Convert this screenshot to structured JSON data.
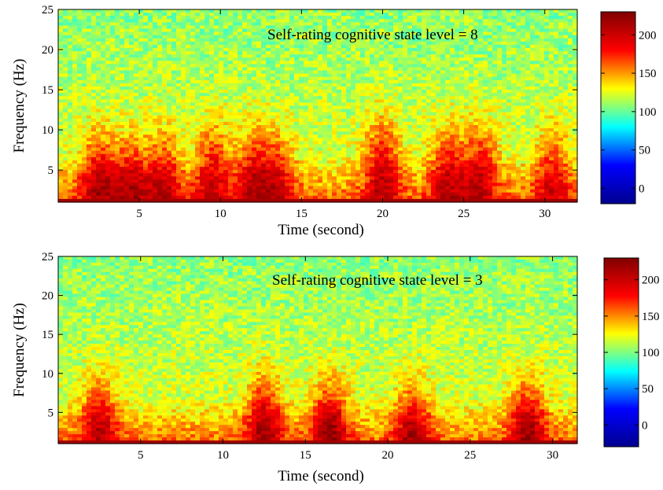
{
  "chart_data": [
    {
      "type": "heatmap",
      "annotation": "Self-rating cognitive state level = 8",
      "xlabel": "Time (second)",
      "ylabel": "Frequency (Hz)",
      "xlim": [
        0,
        32
      ],
      "ylim": [
        1,
        25
      ],
      "xticks": [
        5,
        10,
        15,
        20,
        25,
        30
      ],
      "yticks": [
        5,
        10,
        15,
        20,
        25
      ],
      "colorbar": {
        "range": [
          -20,
          230
        ],
        "ticks": [
          0,
          50,
          100,
          150,
          200
        ]
      },
      "colormap": [
        "#00008f",
        "#0000ff",
        "#00ffff",
        "#ffff00",
        "#ff0000",
        "#800000"
      ],
      "background_level": 120,
      "hotspots": [
        {
          "time": 2.5,
          "freq": 3.5,
          "intensity": 185
        },
        {
          "time": 4.5,
          "freq": 3.0,
          "intensity": 180
        },
        {
          "time": 6.5,
          "freq": 3.5,
          "intensity": 175
        },
        {
          "time": 9.5,
          "freq": 4.5,
          "intensity": 175
        },
        {
          "time": 12.0,
          "freq": 4.0,
          "intensity": 175
        },
        {
          "time": 13.5,
          "freq": 3.5,
          "intensity": 170
        },
        {
          "time": 20.0,
          "freq": 5.0,
          "intensity": 185
        },
        {
          "time": 24.0,
          "freq": 4.0,
          "intensity": 180
        },
        {
          "time": 26.0,
          "freq": 4.5,
          "intensity": 180
        },
        {
          "time": 30.5,
          "freq": 4.0,
          "intensity": 170
        }
      ]
    },
    {
      "type": "heatmap",
      "annotation": "Self-rating cognitive state level = 3",
      "xlabel": "Time (second)",
      "ylabel": "Frequency (Hz)",
      "xlim": [
        0,
        31.5
      ],
      "ylim": [
        1,
        25
      ],
      "xticks": [
        5,
        10,
        15,
        20,
        25,
        30
      ],
      "yticks": [
        5,
        10,
        15,
        20,
        25
      ],
      "colorbar": {
        "range": [
          -30,
          230
        ],
        "ticks": [
          0,
          50,
          100,
          150,
          200
        ]
      },
      "colormap": [
        "#00008f",
        "#0000ff",
        "#00ffff",
        "#ffff00",
        "#ff0000",
        "#800000"
      ],
      "background_level": 115,
      "hotspots": [
        {
          "time": 2.5,
          "freq": 3.5,
          "intensity": 175
        },
        {
          "time": 12.5,
          "freq": 3.5,
          "intensity": 185
        },
        {
          "time": 16.5,
          "freq": 3.0,
          "intensity": 190
        },
        {
          "time": 21.5,
          "freq": 2.5,
          "intensity": 180
        },
        {
          "time": 28.5,
          "freq": 3.0,
          "intensity": 185
        }
      ]
    }
  ]
}
